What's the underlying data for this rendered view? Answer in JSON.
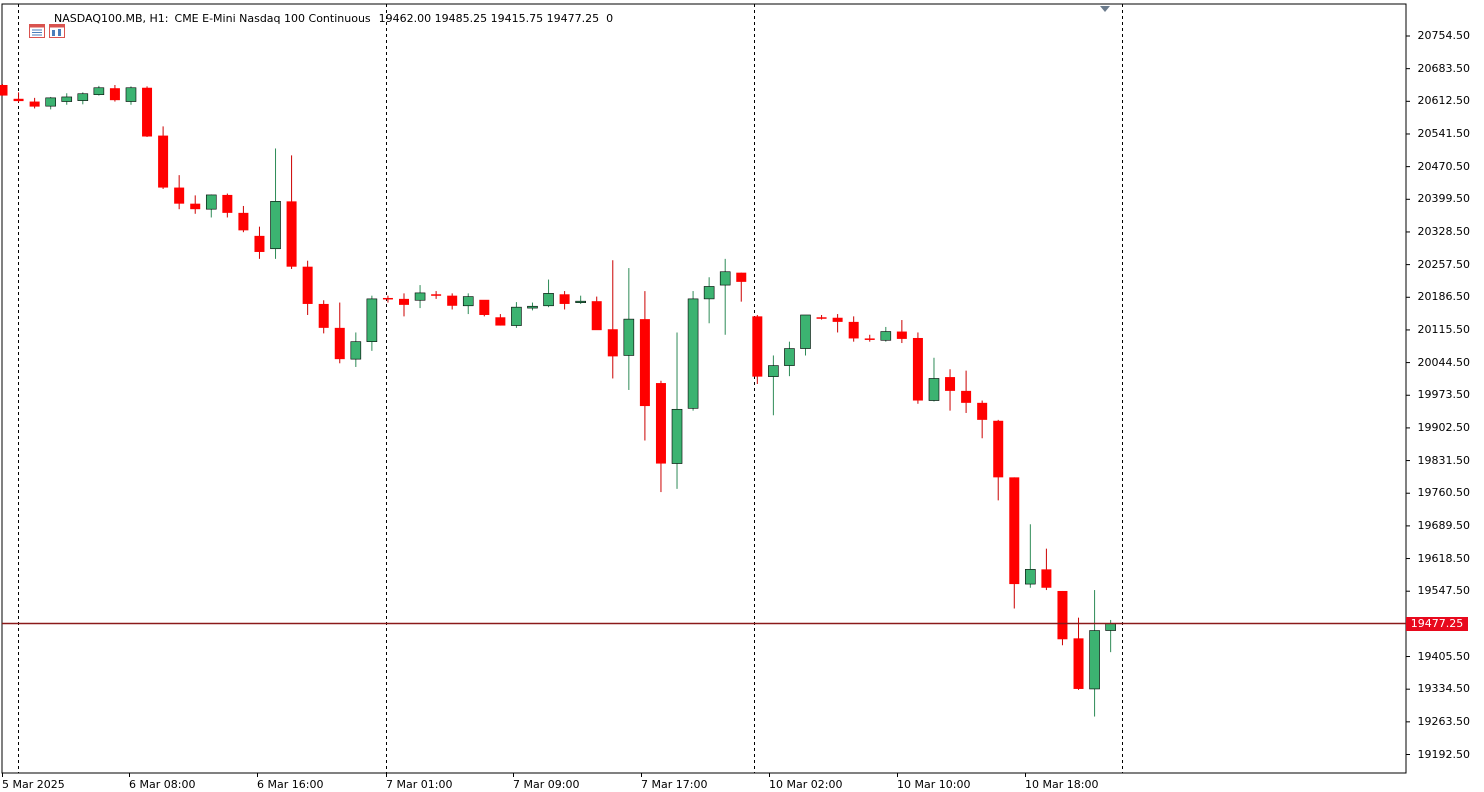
{
  "header": {
    "symbol_timeframe": "NASDAQ100.MB, H1:",
    "description": "CME E-Mini Nasdaq 100 Continuous",
    "ohlc": "19462.00 19485.25 19415.75 19477.25  0"
  },
  "colors": {
    "bull_body": "#3cb371",
    "bear_body": "#ff0000",
    "current_price_line": "#8b1a1a",
    "current_price_tag": "#e8091d"
  },
  "icons": [
    "list-icon",
    "chart-icon"
  ],
  "current_price": "19477.25",
  "chart_data": {
    "type": "candlestick",
    "ylim": [
      19130,
      20810
    ],
    "y_ticks": [
      "20754.50",
      "20683.50",
      "20612.50",
      "20541.50",
      "20470.50",
      "20399.50",
      "20328.50",
      "20257.50",
      "20186.50",
      "20115.50",
      "20044.50",
      "19973.50",
      "19902.50",
      "19831.50",
      "19760.50",
      "19689.50",
      "19618.50",
      "19547.50",
      "19405.50",
      "19334.50",
      "19263.50",
      "19192.50"
    ],
    "x_ticks": [
      "5 Mar 2025",
      "6 Mar 08:00",
      "6 Mar 16:00",
      "7 Mar 01:00",
      "7 Mar 09:00",
      "7 Mar 17:00",
      "10 Mar 02:00",
      "10 Mar 10:00",
      "10 Mar 18:00"
    ],
    "session_separators": [
      "6 Mar 00:00",
      "7 Mar 00:00",
      "10 Mar 00:00",
      "11 Mar 00:00"
    ],
    "candles": [
      [
        20648,
        20650,
        20625,
        20625
      ],
      [
        20618,
        20632,
        20610,
        20613
      ],
      [
        20612,
        20620,
        20597,
        20601
      ],
      [
        20602,
        20622,
        20595,
        20620
      ],
      [
        20612,
        20630,
        20605,
        20622
      ],
      [
        20614,
        20632,
        20606,
        20629
      ],
      [
        20627,
        20646,
        20625,
        20642
      ],
      [
        20641,
        20648,
        20612,
        20615
      ],
      [
        20612,
        20645,
        20605,
        20642
      ],
      [
        20642,
        20645,
        20535,
        20536
      ],
      [
        20538,
        20558,
        20422,
        20425
      ],
      [
        20425,
        20452,
        20378,
        20390
      ],
      [
        20390,
        20408,
        20368,
        20378
      ],
      [
        20378,
        20410,
        20360,
        20409
      ],
      [
        20409,
        20412,
        20360,
        20370
      ],
      [
        20370,
        20385,
        20328,
        20332
      ],
      [
        20320,
        20340,
        20270,
        20285
      ],
      [
        20292,
        20510,
        20270,
        20395
      ],
      [
        20395,
        20495,
        20248,
        20253
      ],
      [
        20253,
        20266,
        20148,
        20172
      ],
      [
        20172,
        20180,
        20108,
        20120
      ],
      [
        20120,
        20175,
        20043,
        20052
      ],
      [
        20052,
        20110,
        20035,
        20090
      ],
      [
        20090,
        20190,
        20070,
        20183
      ],
      [
        20185,
        20190,
        20175,
        20183
      ],
      [
        20183,
        20195,
        20145,
        20170
      ],
      [
        20180,
        20213,
        20163,
        20196
      ],
      [
        20193,
        20200,
        20183,
        20190
      ],
      [
        20190,
        20195,
        20160,
        20168
      ],
      [
        20168,
        20195,
        20150,
        20188
      ],
      [
        20181,
        20180,
        20145,
        20148
      ],
      [
        20143,
        20150,
        20125,
        20125
      ],
      [
        20125,
        20176,
        20120,
        20165
      ],
      [
        20163,
        20175,
        20158,
        20167
      ],
      [
        20168,
        20225,
        20165,
        20195
      ],
      [
        20193,
        20200,
        20160,
        20172
      ],
      [
        20175,
        20190,
        20172,
        20178
      ],
      [
        20178,
        20188,
        20125,
        20115
      ],
      [
        20117,
        20267,
        20010,
        20058
      ],
      [
        20060,
        20250,
        19985,
        20139
      ],
      [
        20139,
        20200,
        19875,
        19950
      ],
      [
        20000,
        20005,
        19763,
        19825
      ],
      [
        19825,
        20110,
        19770,
        19943
      ],
      [
        19945,
        20200,
        19940,
        20183
      ],
      [
        20183,
        20230,
        20130,
        20210
      ],
      [
        20213,
        20270,
        20105,
        20242
      ],
      [
        20240,
        20240,
        20177,
        20220
      ],
      [
        20145,
        20148,
        19998,
        20014
      ],
      [
        20014,
        20060,
        19930,
        20038
      ],
      [
        20038,
        20090,
        20015,
        20075
      ],
      [
        20075,
        20148,
        20060,
        20148
      ],
      [
        20143,
        20148,
        20138,
        20140
      ],
      [
        20142,
        20150,
        20110,
        20133
      ],
      [
        20133,
        20145,
        20090,
        20097
      ],
      [
        20097,
        20105,
        20090,
        20095
      ],
      [
        20093,
        20122,
        20090,
        20112
      ],
      [
        20112,
        20137,
        20087,
        20096
      ],
      [
        20098,
        20110,
        19955,
        19962
      ],
      [
        19962,
        20055,
        19960,
        20010
      ],
      [
        20013,
        20030,
        19940,
        19983
      ],
      [
        19983,
        20027,
        19935,
        19957
      ],
      [
        19957,
        19962,
        19880,
        19920
      ],
      [
        19918,
        19920,
        19745,
        19795
      ],
      [
        19795,
        19795,
        19510,
        19563
      ],
      [
        19563,
        19693,
        19555,
        19595
      ],
      [
        19595,
        19640,
        19550,
        19555
      ],
      [
        19548,
        19548,
        19430,
        19443
      ],
      [
        19445,
        19490,
        19333,
        19335
      ],
      [
        19335,
        19550,
        19275,
        19462
      ],
      [
        19462,
        19485,
        19415,
        19477
      ]
    ]
  }
}
